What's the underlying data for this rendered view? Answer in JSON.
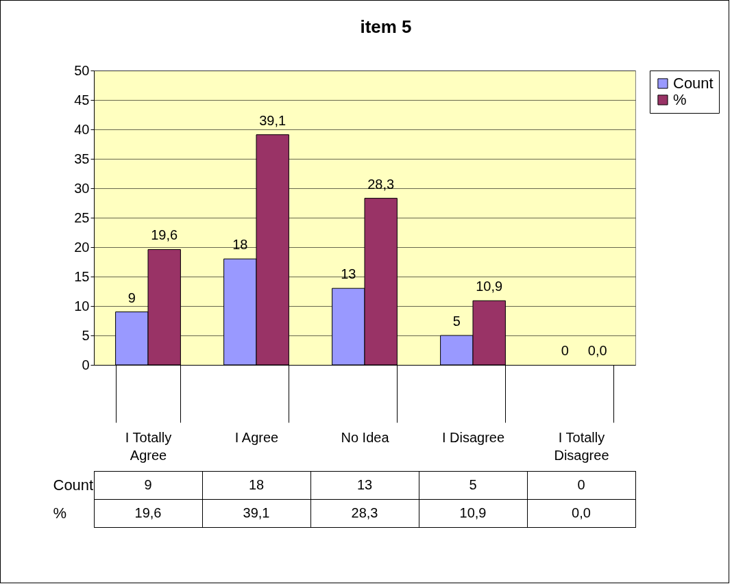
{
  "chart_data": {
    "type": "bar",
    "title": "item 5",
    "categories": [
      "I Totally Agree",
      "I Agree",
      "No Idea",
      "I Disagree",
      "I Totally Disagree"
    ],
    "series": [
      {
        "name": "Count",
        "color": "#9999ff",
        "values": [
          9,
          18,
          13,
          5,
          0
        ],
        "value_labels": [
          "9",
          "18",
          "13",
          "5",
          "0"
        ]
      },
      {
        "name": "%",
        "color": "#993366",
        "values": [
          19.6,
          39.1,
          28.3,
          10.9,
          0.0
        ],
        "value_labels": [
          "19,6",
          "39,1",
          "28,3",
          "10,9",
          "0,0"
        ]
      }
    ],
    "ylim": [
      0,
      50
    ],
    "yticks": [
      0,
      5,
      10,
      15,
      20,
      25,
      30,
      35,
      40,
      45,
      50
    ],
    "grid": "y",
    "legend": "right"
  }
}
